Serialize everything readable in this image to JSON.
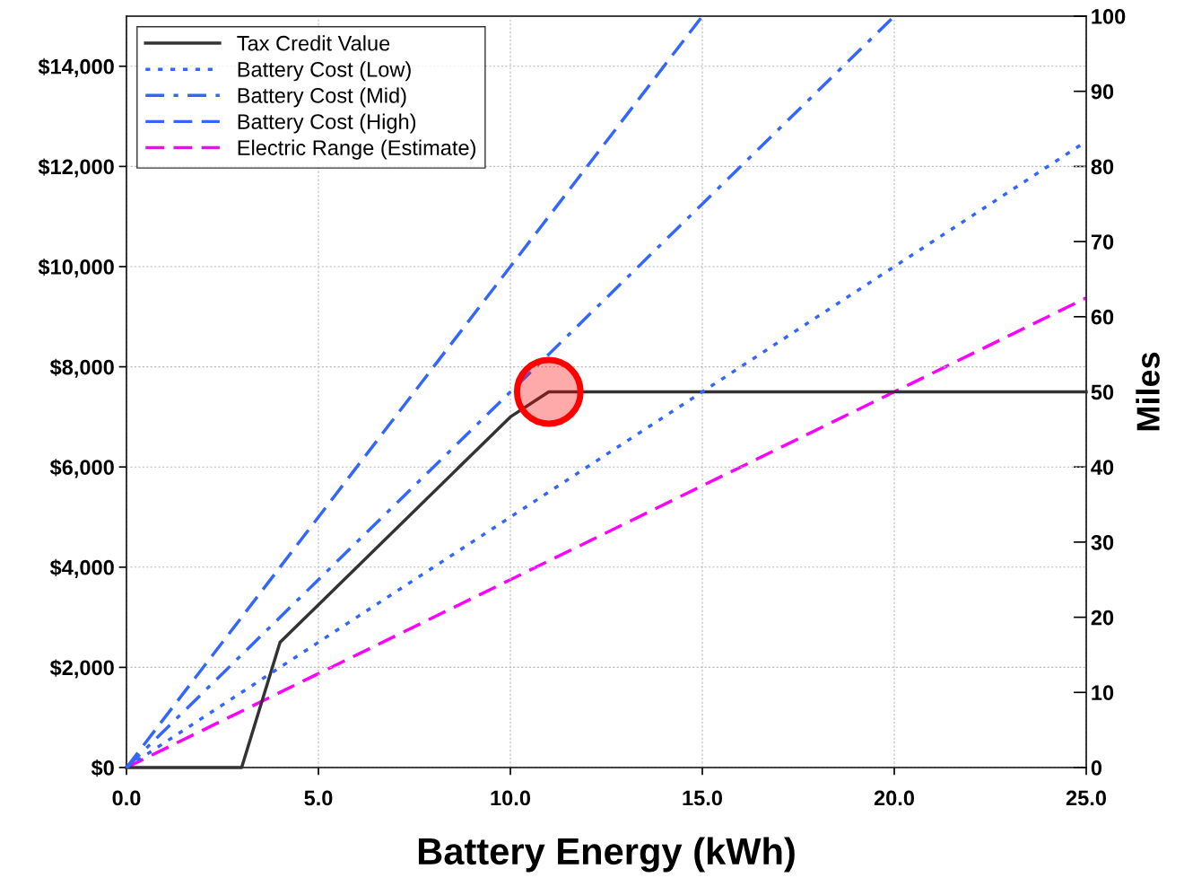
{
  "chart_data": {
    "type": "line",
    "xlabel": "Battery Energy (kWh)",
    "y2label": "Miles",
    "xlim": [
      0,
      25
    ],
    "xticks": [
      {
        "value": 0,
        "label": "0.0"
      },
      {
        "value": 5,
        "label": "5.0"
      },
      {
        "value": 10,
        "label": "10.0"
      },
      {
        "value": 15,
        "label": "15.0"
      },
      {
        "value": 20,
        "label": "20.0"
      },
      {
        "value": 25,
        "label": "25.0"
      }
    ],
    "ylim": [
      0,
      15000
    ],
    "yticks": [
      {
        "value": 0,
        "label": "$0"
      },
      {
        "value": 2000,
        "label": "$2,000"
      },
      {
        "value": 4000,
        "label": "$4,000"
      },
      {
        "value": 6000,
        "label": "$6,000"
      },
      {
        "value": 8000,
        "label": "$8,000"
      },
      {
        "value": 10000,
        "label": "$10,000"
      },
      {
        "value": 12000,
        "label": "$12,000"
      },
      {
        "value": 14000,
        "label": "$14,000"
      }
    ],
    "y2lim": [
      0,
      100
    ],
    "y2ticks": [
      0,
      10,
      20,
      30,
      40,
      50,
      60,
      70,
      80,
      90,
      100
    ],
    "grid": true,
    "legend": "top left",
    "series": [
      {
        "name": "Tax Credit Value",
        "color": "#333333",
        "line_style": "solid",
        "x": [
          0,
          3,
          4,
          5,
          10,
          11,
          25
        ],
        "values": [
          0,
          0,
          2500,
          3250,
          7000,
          7500,
          7500
        ]
      },
      {
        "name": "Battery Cost (Low)",
        "color": "#3366ff",
        "line_style": "dotted",
        "x": [
          0,
          5,
          10,
          15,
          20,
          25
        ],
        "values": [
          0,
          2500,
          5000,
          7500,
          10000,
          12500
        ]
      },
      {
        "name": "Battery Cost (Mid)",
        "color": "#3366ff",
        "line_style": "dashdot",
        "x": [
          0,
          5,
          10,
          15,
          20
        ],
        "values": [
          0,
          3750,
          7500,
          11250,
          15000
        ]
      },
      {
        "name": "Battery Cost (High)",
        "color": "#3366ff",
        "line_style": "dashed",
        "x": [
          0,
          5,
          10,
          15
        ],
        "values": [
          0,
          5000,
          10000,
          15000
        ]
      },
      {
        "name": "Electric Range (Estimate)",
        "color": "#ff00ff",
        "line_style": "dashed",
        "axis": "y2",
        "x": [
          0,
          5,
          10,
          15,
          20,
          25
        ],
        "values": [
          0,
          12.5,
          25,
          37.5,
          50,
          62.5
        ]
      },
      {
        "type": "scatter",
        "color": "#ff0000",
        "marker": "circle",
        "x": [
          11
        ],
        "values": [
          7500
        ]
      }
    ]
  }
}
